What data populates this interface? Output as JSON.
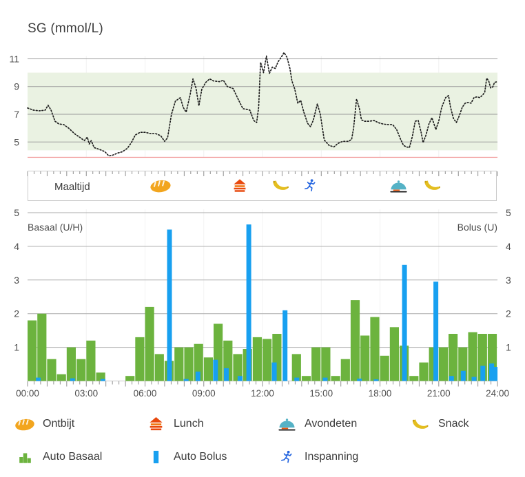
{
  "title": "SG (mmol/L)",
  "meal_strip": {
    "label": "Maaltijd",
    "events": [
      {
        "type": "breakfast",
        "time": 6.75
      },
      {
        "type": "lunch",
        "time": 10.8
      },
      {
        "type": "snack",
        "time": 12.9
      },
      {
        "type": "exercise",
        "time": 14.4
      },
      {
        "type": "dinner",
        "time": 18.9
      },
      {
        "type": "snack",
        "time": 20.65
      }
    ]
  },
  "legend": {
    "meals": [
      {
        "icon": "breakfast",
        "label": "Ontbijt"
      },
      {
        "icon": "lunch",
        "label": "Lunch"
      },
      {
        "icon": "dinner",
        "label": "Avondeten"
      },
      {
        "icon": "snack",
        "label": "Snack"
      }
    ],
    "therapy": [
      {
        "icon": "auto-basal",
        "label": "Auto Basaal"
      },
      {
        "icon": "auto-bolus",
        "label": "Auto Bolus"
      },
      {
        "icon": "exercise",
        "label": "Inspanning"
      }
    ]
  },
  "colors": {
    "basal": "#6CB33E",
    "bolus": "#18A0F0",
    "target_band": "#EAF2E2",
    "low_line": "#F09090",
    "sg_grid": "#9B9B9B",
    "bar_grid": "#ABABAB",
    "axis_text": "#4D4D4D",
    "curve": "#1F1F1F",
    "tick": "#8F8F8F",
    "breakfast_icon": "#F2A51E",
    "lunch_icon_red": "#E8490E",
    "lunch_icon_orange": "#F0720B",
    "dinner_icon": "#55B2C6",
    "snack_icon": "#E4BE20",
    "exercise_icon": "#2163DF"
  },
  "chart_data": [
    {
      "type": "line",
      "title": "SG (mmol/L)",
      "ylabel": "mmol/L",
      "yticks": [
        5,
        7,
        9,
        11
      ],
      "ylim": [
        3.6,
        11.7
      ],
      "x_range_hours": [
        0,
        24
      ],
      "target_range": [
        4.4,
        10.0
      ],
      "low_limit": 3.9,
      "grid": "horizontal",
      "series": [
        {
          "name": "sensor-glucose",
          "style": "dotted",
          "points": [
            [
              0,
              7.45
            ],
            [
              0.3,
              7.3
            ],
            [
              0.6,
              7.25
            ],
            [
              0.9,
              7.3
            ],
            [
              1.05,
              7.65
            ],
            [
              1.2,
              7.3
            ],
            [
              1.4,
              6.5
            ],
            [
              1.6,
              6.3
            ],
            [
              1.85,
              6.25
            ],
            [
              2.1,
              6.0
            ],
            [
              2.4,
              5.6
            ],
            [
              2.65,
              5.35
            ],
            [
              2.9,
              5.1
            ],
            [
              3.05,
              5.35
            ],
            [
              3.15,
              4.85
            ],
            [
              3.25,
              5.1
            ],
            [
              3.4,
              4.6
            ],
            [
              3.7,
              4.45
            ],
            [
              3.95,
              4.3
            ],
            [
              4.15,
              4.0
            ],
            [
              4.35,
              4.05
            ],
            [
              4.6,
              4.2
            ],
            [
              4.85,
              4.3
            ],
            [
              5.1,
              4.55
            ],
            [
              5.3,
              4.95
            ],
            [
              5.5,
              5.5
            ],
            [
              5.75,
              5.7
            ],
            [
              6.0,
              5.7
            ],
            [
              6.3,
              5.6
            ],
            [
              6.55,
              5.6
            ],
            [
              6.8,
              5.45
            ],
            [
              7.0,
              5.05
            ],
            [
              7.15,
              5.3
            ],
            [
              7.35,
              7.0
            ],
            [
              7.55,
              7.95
            ],
            [
              7.8,
              8.2
            ],
            [
              7.95,
              7.5
            ],
            [
              8.1,
              7.15
            ],
            [
              8.3,
              8.4
            ],
            [
              8.45,
              9.55
            ],
            [
              8.6,
              8.9
            ],
            [
              8.75,
              7.6
            ],
            [
              8.9,
              8.8
            ],
            [
              9.1,
              9.3
            ],
            [
              9.3,
              9.55
            ],
            [
              9.5,
              9.4
            ],
            [
              9.8,
              9.35
            ],
            [
              10.0,
              9.45
            ],
            [
              10.2,
              9.0
            ],
            [
              10.5,
              8.85
            ],
            [
              10.75,
              8.1
            ],
            [
              11.0,
              7.4
            ],
            [
              11.2,
              7.35
            ],
            [
              11.35,
              7.3
            ],
            [
              11.55,
              6.55
            ],
            [
              11.7,
              6.4
            ],
            [
              11.8,
              7.5
            ],
            [
              11.9,
              10.75
            ],
            [
              12.05,
              10.0
            ],
            [
              12.2,
              11.2
            ],
            [
              12.35,
              9.95
            ],
            [
              12.5,
              10.4
            ],
            [
              12.65,
              10.3
            ],
            [
              12.8,
              10.8
            ],
            [
              12.95,
              11.1
            ],
            [
              13.1,
              11.45
            ],
            [
              13.25,
              11.1
            ],
            [
              13.4,
              10.3
            ],
            [
              13.5,
              9.4
            ],
            [
              13.65,
              8.8
            ],
            [
              13.8,
              7.8
            ],
            [
              13.95,
              8.0
            ],
            [
              14.1,
              7.2
            ],
            [
              14.3,
              6.35
            ],
            [
              14.45,
              6.1
            ],
            [
              14.6,
              6.6
            ],
            [
              14.8,
              7.75
            ],
            [
              14.95,
              7.0
            ],
            [
              15.15,
              5.15
            ],
            [
              15.4,
              4.75
            ],
            [
              15.65,
              4.65
            ],
            [
              15.85,
              4.9
            ],
            [
              16.1,
              5.05
            ],
            [
              16.4,
              5.05
            ],
            [
              16.55,
              5.2
            ],
            [
              16.65,
              6.0
            ],
            [
              16.8,
              8.1
            ],
            [
              16.95,
              7.4
            ],
            [
              17.05,
              6.6
            ],
            [
              17.2,
              6.5
            ],
            [
              17.45,
              6.5
            ],
            [
              17.7,
              6.55
            ],
            [
              17.9,
              6.4
            ],
            [
              18.15,
              6.3
            ],
            [
              18.4,
              6.25
            ],
            [
              18.65,
              6.25
            ],
            [
              18.85,
              5.9
            ],
            [
              19.05,
              5.2
            ],
            [
              19.2,
              4.75
            ],
            [
              19.35,
              4.65
            ],
            [
              19.5,
              4.6
            ],
            [
              19.65,
              5.4
            ],
            [
              19.8,
              6.5
            ],
            [
              19.95,
              6.55
            ],
            [
              20.1,
              5.7
            ],
            [
              20.2,
              4.95
            ],
            [
              20.35,
              5.5
            ],
            [
              20.5,
              6.3
            ],
            [
              20.65,
              6.75
            ],
            [
              20.85,
              5.9
            ],
            [
              21.0,
              6.5
            ],
            [
              21.15,
              7.5
            ],
            [
              21.35,
              8.2
            ],
            [
              21.5,
              8.35
            ],
            [
              21.6,
              7.5
            ],
            [
              21.75,
              6.7
            ],
            [
              21.9,
              6.4
            ],
            [
              22.05,
              6.9
            ],
            [
              22.2,
              7.5
            ],
            [
              22.35,
              7.8
            ],
            [
              22.5,
              7.85
            ],
            [
              22.65,
              7.8
            ],
            [
              22.8,
              8.2
            ],
            [
              22.95,
              8.25
            ],
            [
              23.1,
              8.2
            ],
            [
              23.25,
              8.4
            ],
            [
              23.35,
              8.6
            ],
            [
              23.45,
              9.6
            ],
            [
              23.55,
              9.4
            ],
            [
              23.65,
              8.9
            ],
            [
              23.75,
              8.95
            ],
            [
              23.85,
              9.3
            ],
            [
              24.0,
              9.35
            ]
          ]
        }
      ]
    },
    {
      "type": "bar",
      "left_axis": "Basaal (U/H)",
      "right_axis": "Bolus (U)",
      "yticks": [
        1,
        2,
        3,
        4,
        5
      ],
      "ylim": [
        0,
        5.2
      ],
      "x_tick_labels": [
        "00:00",
        "03:00",
        "06:00",
        "09:00",
        "12:00",
        "15:00",
        "18:00",
        "21:00",
        "24:00"
      ],
      "series": [
        {
          "name": "Auto Basaal",
          "color_key": "basal",
          "interval_hours": 0.5,
          "values": [
            1.8,
            2.0,
            0.65,
            0.2,
            1.0,
            0.65,
            1.2,
            0.25,
            0,
            0,
            0.15,
            1.3,
            2.2,
            0.8,
            0.6,
            1.0,
            1.0,
            1.1,
            0.7,
            1.7,
            1.2,
            0.8,
            0.95,
            1.3,
            1.25,
            1.4,
            0,
            0.8,
            0.15,
            1.0,
            1.0,
            0.15,
            0.65,
            2.4,
            1.35,
            1.9,
            0.75,
            1.6,
            1.05,
            0.15,
            0.55,
            1.0,
            1.0,
            1.4,
            1.0,
            1.45,
            1.4,
            1.4
          ]
        },
        {
          "name": "Auto Bolus",
          "color_key": "bolus",
          "events": [
            {
              "t": 0.55,
              "h": 0.1
            },
            {
              "t": 2.3,
              "h": 0.08
            },
            {
              "t": 3.85,
              "h": 0.06
            },
            {
              "t": 7.25,
              "h": 4.5
            },
            {
              "t": 8.1,
              "h": 0.06
            },
            {
              "t": 8.7,
              "h": 0.28
            },
            {
              "t": 9.6,
              "h": 0.63
            },
            {
              "t": 10.15,
              "h": 0.38
            },
            {
              "t": 10.85,
              "h": 0.15
            },
            {
              "t": 11.3,
              "h": 4.65
            },
            {
              "t": 12.6,
              "h": 0.55
            },
            {
              "t": 13.15,
              "h": 2.1
            },
            {
              "t": 13.75,
              "h": 0.1
            },
            {
              "t": 15.2,
              "h": 0.1
            },
            {
              "t": 16.95,
              "h": 0.07
            },
            {
              "t": 17.8,
              "h": 0.05
            },
            {
              "t": 19.25,
              "h": 3.45
            },
            {
              "t": 20.85,
              "h": 2.95
            },
            {
              "t": 21.65,
              "h": 0.15
            },
            {
              "t": 22.25,
              "h": 0.3
            },
            {
              "t": 22.8,
              "h": 0.12
            },
            {
              "t": 23.25,
              "h": 0.45
            },
            {
              "t": 23.7,
              "h": 0.52
            },
            {
              "t": 23.95,
              "h": 0.42
            }
          ]
        }
      ]
    }
  ]
}
